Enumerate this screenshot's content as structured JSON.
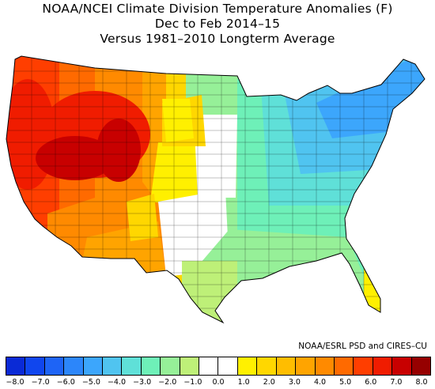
{
  "title": {
    "line1": "NOAA/NCEI Climate Division Temperature Anomalies (F)",
    "line2": "Dec to Feb 2014–15",
    "line3": "Versus 1981–2010 Longterm Average"
  },
  "credit": "NOAA/ESRL PSD and CIRES–CU",
  "legend": {
    "colors": [
      "#0a2ad6",
      "#1046ee",
      "#1e64f6",
      "#2c86fa",
      "#3ca6fc",
      "#50c4f0",
      "#5fe0d8",
      "#6ef0b8",
      "#96f098",
      "#bef078",
      "#ffffff",
      "#ffffff",
      "#fff000",
      "#ffd700",
      "#ffbd00",
      "#ffa400",
      "#ff8a00",
      "#ff6a00",
      "#ff3e00",
      "#f01c00",
      "#c80000",
      "#960000"
    ],
    "ticks": [
      "−8.0",
      "−7.0",
      "−6.0",
      "−5.0",
      "−4.0",
      "−3.0",
      "−2.0",
      "−1.0",
      "0.0",
      "1.0",
      "2.0",
      "3.0",
      "4.0",
      "5.0",
      "6.0",
      "7.0",
      "8.0"
    ]
  }
}
